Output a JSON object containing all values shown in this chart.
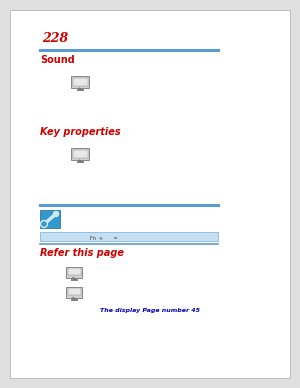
{
  "page_num": "228",
  "page_num_color": "#cc0000",
  "bg_color": "#ffffff",
  "outer_bg": "#e0e0e0",
  "section1_title": "Sound",
  "section1_title_color": "#cc0000",
  "line_color": "#5b9bd5",
  "section2_title": "Key properties",
  "section2_title_color": "#cc0000",
  "section4_title": "Refer this page",
  "section4_title_color": "#cc0000",
  "link_text": "The display Page number 45",
  "link_color": "#0000bb",
  "highlight_color": "#c5dff0",
  "highlight_border": "#5b9bd5",
  "icon_body": "#d0d0d0",
  "icon_inner": "#e8e8e8",
  "icon_border": "#888888",
  "icon_stand": "#707070",
  "wrench_bg": "#3399cc",
  "wrench_color": "#d0e8f0"
}
